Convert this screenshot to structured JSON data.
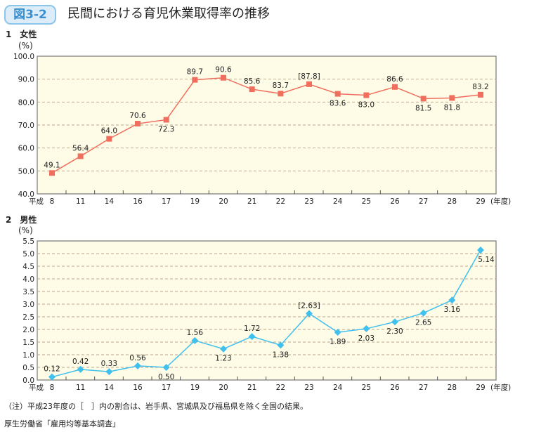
{
  "header": {
    "figure_no": "図3-2",
    "title": "民間における育児休業取得率の推移"
  },
  "chart_data": [
    {
      "type": "line",
      "section": "1　女性",
      "ylabel": "(%)",
      "ylim": [
        40,
        100
      ],
      "yticks": [
        "40.0",
        "50.0",
        "60.0",
        "70.0",
        "80.0",
        "90.0",
        "100.0"
      ],
      "x_prefix": "平成",
      "x_suffix": "(年度)",
      "grid": true,
      "color": "#ef6e5e",
      "marker": "square",
      "categories": [
        "8",
        "11",
        "14",
        "16",
        "17",
        "19",
        "20",
        "21",
        "22",
        "23",
        "24",
        "25",
        "26",
        "27",
        "28",
        "29"
      ],
      "values": [
        49.1,
        56.4,
        64.0,
        70.6,
        72.3,
        89.7,
        90.6,
        85.6,
        83.7,
        87.8,
        83.6,
        83.0,
        86.6,
        81.5,
        81.8,
        83.2
      ],
      "labels": [
        "49.1",
        "56.4",
        "64.0",
        "70.6",
        "72.3",
        "89.7",
        "90.6",
        "85.6",
        "83.7",
        "[87.8]",
        "83.6",
        "83.0",
        "86.6",
        "81.5",
        "81.8",
        "83.2"
      ],
      "label_pos": [
        "above",
        "above",
        "above",
        "above",
        "below",
        "above",
        "above",
        "above",
        "above",
        "above",
        "below",
        "below",
        "above",
        "below",
        "below",
        "above"
      ]
    },
    {
      "type": "line",
      "section": "2　男性",
      "ylabel": "(%)",
      "ylim": [
        0,
        5.5
      ],
      "yticks": [
        "0.0",
        "0.5",
        "1.0",
        "1.5",
        "2.0",
        "2.5",
        "3.0",
        "3.5",
        "4.0",
        "4.5",
        "5.0",
        "5.5"
      ],
      "x_prefix": "平成",
      "x_suffix": "(年度)",
      "grid": true,
      "color": "#3fc0ee",
      "marker": "diamond",
      "categories": [
        "8",
        "11",
        "14",
        "16",
        "17",
        "19",
        "20",
        "21",
        "22",
        "23",
        "24",
        "25",
        "26",
        "27",
        "28",
        "29"
      ],
      "values": [
        0.12,
        0.42,
        0.33,
        0.56,
        0.5,
        1.56,
        1.23,
        1.72,
        1.38,
        2.63,
        1.89,
        2.03,
        2.3,
        2.65,
        3.16,
        5.14
      ],
      "labels": [
        "0.12",
        "0.42",
        "0.33",
        "0.56",
        "0.50",
        "1.56",
        "1.23",
        "1.72",
        "1.38",
        "[2.63]",
        "1.89",
        "2.03",
        "2.30",
        "2.65",
        "3.16",
        "5.14"
      ],
      "label_pos": [
        "above",
        "above",
        "above",
        "above",
        "below",
        "above",
        "below",
        "above",
        "below",
        "above",
        "below",
        "below",
        "below",
        "below",
        "below",
        "below"
      ]
    }
  ],
  "footer": {
    "note": "（注）平成23年度の［　］内の割合は、岩手県、宮城県及び福島県を除く全国の結果。",
    "source": "厚生労働省「雇用均等基本調査」"
  },
  "colors": {
    "plot_bg": "#fefbe6",
    "grid": "#b9a58a",
    "badge": "#3a8fd0"
  }
}
